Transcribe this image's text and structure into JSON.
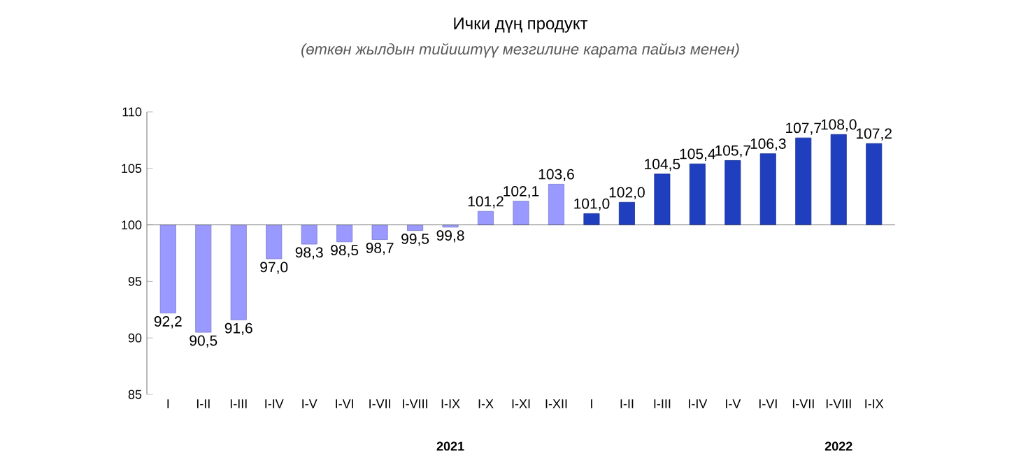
{
  "chart_data": {
    "type": "bar",
    "title": "Ички дүң продукт",
    "subtitle": "(өткөн жылдын тийиштүү мезгилине карата пайыз менен)",
    "categories": [
      "I",
      "I-II",
      "I-III",
      "I-IV",
      "I-V",
      "I-VI",
      "I-VII",
      "I-VIII",
      "I-IX",
      "I-X",
      "I-XI",
      "I-XII",
      "I",
      "I-II",
      "I-III",
      "I-IV",
      "I-V",
      "I-VI",
      "I-VII",
      "I-VIII",
      "I-IX"
    ],
    "base": [
      100,
      100,
      100,
      100,
      100,
      100,
      100,
      100,
      100,
      100,
      100,
      100,
      100,
      100,
      100,
      100,
      100,
      100,
      100,
      100,
      100
    ],
    "values": [
      -7.8,
      -9.5,
      -8.4,
      -3.0,
      -1.7,
      -1.5,
      -1.3,
      -0.5,
      -0.2,
      1.2,
      2.1,
      3.6,
      1.0,
      2.0,
      4.5,
      5.4,
      5.7,
      6.3,
      7.7,
      8.0,
      7.2
    ],
    "value_labels": [
      "92,2",
      "90,5",
      "91,6",
      "97,0",
      "98,3",
      "98,5",
      "98,7",
      "99,5",
      "99,8",
      "101,2",
      "102,1",
      "103,6",
      "101,0",
      "102,0",
      "104,5",
      "105,4",
      "105,7",
      "106,3",
      "107,7",
      "108,0",
      "107,2"
    ],
    "colors": [
      "#9999ff",
      "#9999ff",
      "#9999ff",
      "#9999ff",
      "#9999ff",
      "#9999ff",
      "#9999ff",
      "#9999ff",
      "#9999ff",
      "#9999ff",
      "#9999ff",
      "#9999ff",
      "#1f3fbf",
      "#1f3fbf",
      "#1f3fbf",
      "#1f3fbf",
      "#1f3fbf",
      "#1f3fbf",
      "#1f3fbf",
      "#1f3fbf",
      "#1f3fbf"
    ],
    "ylim": [
      85,
      110
    ],
    "yticks": [
      85,
      90,
      95,
      100,
      105,
      110
    ],
    "annotations": [
      "2021",
      "2022"
    ]
  }
}
